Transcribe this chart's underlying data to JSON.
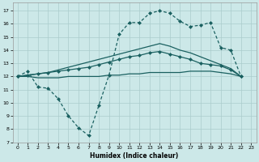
{
  "xlabel": "Humidex (Indice chaleur)",
  "bg_color": "#cce8e8",
  "grid_color": "#aacccc",
  "line_color": "#1a6060",
  "xlim": [
    -0.5,
    23.5
  ],
  "ylim": [
    7,
    17.6
  ],
  "xticks": [
    0,
    1,
    2,
    3,
    4,
    5,
    6,
    7,
    8,
    9,
    10,
    11,
    12,
    13,
    14,
    15,
    16,
    17,
    18,
    19,
    20,
    21,
    22,
    23
  ],
  "yticks": [
    7,
    8,
    9,
    10,
    11,
    12,
    13,
    14,
    15,
    16,
    17
  ],
  "line_dashed_markers": {
    "x": [
      0,
      1,
      2,
      3,
      4,
      5,
      6,
      7,
      8,
      9,
      10,
      11,
      12,
      13,
      14,
      15,
      16,
      17,
      18,
      19,
      20,
      21,
      22
    ],
    "y": [
      12.0,
      12.4,
      11.2,
      11.1,
      10.3,
      9.0,
      8.1,
      7.5,
      9.8,
      12.1,
      15.2,
      16.1,
      16.1,
      16.8,
      17.0,
      16.8,
      16.2,
      15.8,
      15.9,
      16.1,
      14.2,
      14.0,
      12.0
    ]
  },
  "line_solid_arc_markers": {
    "x": [
      0,
      1,
      2,
      3,
      4,
      5,
      6,
      7,
      8,
      9,
      10,
      11,
      12,
      13,
      14,
      15,
      16,
      17,
      18,
      19,
      20,
      21,
      22
    ],
    "y": [
      12.0,
      12.1,
      12.2,
      12.3,
      12.4,
      12.5,
      12.6,
      12.7,
      12.9,
      13.1,
      13.3,
      13.5,
      13.6,
      13.8,
      13.9,
      13.7,
      13.5,
      13.3,
      13.0,
      12.9,
      12.8,
      12.5,
      12.0
    ]
  },
  "line_solid_upper": {
    "x": [
      0,
      1,
      2,
      3,
      4,
      5,
      6,
      7,
      8,
      9,
      10,
      11,
      12,
      13,
      14,
      15,
      16,
      17,
      18,
      19,
      20,
      21,
      22
    ],
    "y": [
      12.0,
      12.1,
      12.2,
      12.3,
      12.5,
      12.7,
      12.9,
      13.1,
      13.3,
      13.5,
      13.7,
      13.9,
      14.1,
      14.3,
      14.5,
      14.3,
      14.0,
      13.8,
      13.5,
      13.2,
      12.9,
      12.6,
      12.0
    ]
  },
  "line_solid_flat": {
    "x": [
      0,
      1,
      2,
      3,
      4,
      5,
      6,
      7,
      8,
      9,
      10,
      11,
      12,
      13,
      14,
      15,
      16,
      17,
      18,
      19,
      20,
      21,
      22
    ],
    "y": [
      12.0,
      12.0,
      11.9,
      11.9,
      11.9,
      12.0,
      12.0,
      12.0,
      12.0,
      12.1,
      12.1,
      12.2,
      12.2,
      12.3,
      12.3,
      12.3,
      12.3,
      12.4,
      12.4,
      12.4,
      12.3,
      12.2,
      12.0
    ]
  }
}
